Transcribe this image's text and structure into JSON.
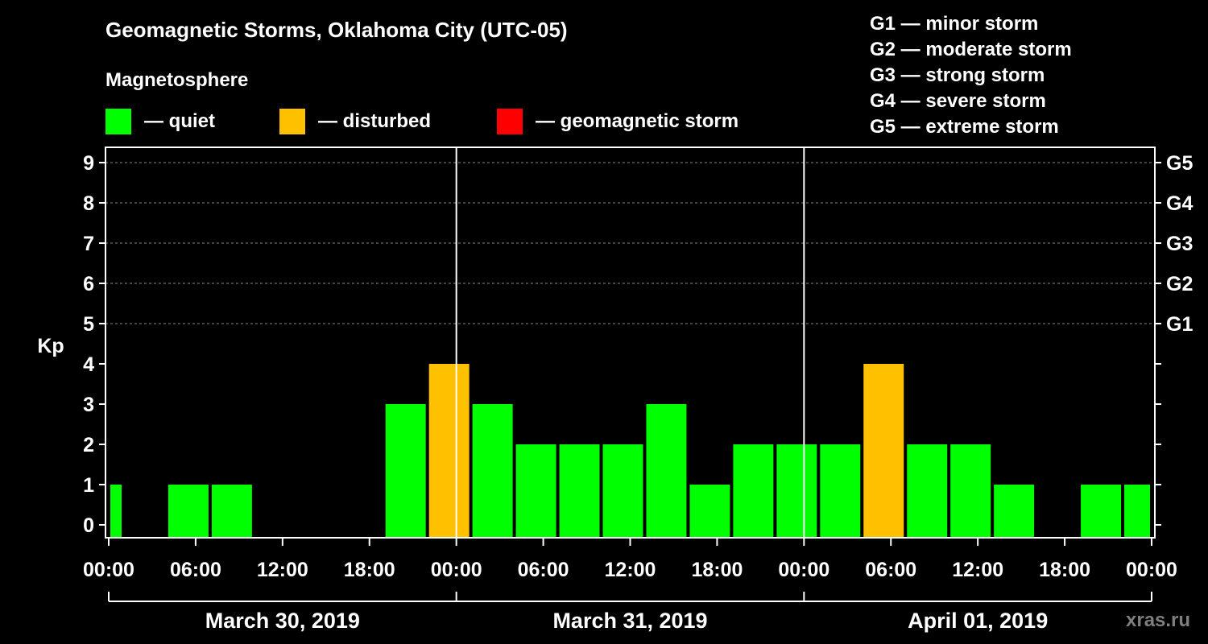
{
  "title": "Geomagnetic Storms, Oklahoma City (UTC-05)",
  "subtitle": "Magnetosphere",
  "legend": [
    {
      "label": "— quiet",
      "color": "#00ff00"
    },
    {
      "label": "— disturbed",
      "color": "#ffc000"
    },
    {
      "label": "— geomagnetic storm",
      "color": "#ff0000"
    }
  ],
  "storm_scale": [
    "G1 — minor storm",
    "G2 — moderate storm",
    "G3 — strong storm",
    "G4 — severe storm",
    "G5 — extreme storm"
  ],
  "credit": "xras.ru",
  "chart_data": {
    "type": "bar",
    "ylabel": "Kp",
    "ylim": [
      0,
      9
    ],
    "yticks": [
      0,
      1,
      2,
      3,
      4,
      5,
      6,
      7,
      8,
      9
    ],
    "right_ticks": [
      {
        "value": 5,
        "label": "G1"
      },
      {
        "value": 6,
        "label": "G2"
      },
      {
        "value": 7,
        "label": "G3"
      },
      {
        "value": 8,
        "label": "G4"
      },
      {
        "value": 9,
        "label": "G5"
      }
    ],
    "x_range_hours": [
      0,
      72
    ],
    "xtick_hours": [
      0,
      6,
      12,
      18,
      24,
      30,
      36,
      42,
      48,
      54,
      60,
      66,
      72
    ],
    "xtick_labels": [
      "00:00",
      "06:00",
      "12:00",
      "18:00",
      "00:00",
      "06:00",
      "12:00",
      "18:00",
      "00:00",
      "06:00",
      "12:00",
      "18:00",
      "00:00"
    ],
    "day_dividers_hours": [
      24,
      48
    ],
    "days": [
      {
        "label": "March 30, 2019",
        "start": 0,
        "end": 24
      },
      {
        "label": "March 31, 2019",
        "start": 24,
        "end": 48
      },
      {
        "label": "April 01, 2019",
        "start": 48,
        "end": 72
      }
    ],
    "colors": {
      "quiet": "#00ff00",
      "disturbed": "#ffc000",
      "storm": "#ff0000"
    },
    "bars": [
      {
        "start": 0,
        "end": 1,
        "kp": 1
      },
      {
        "start": 1,
        "end": 4,
        "kp": 0
      },
      {
        "start": 4,
        "end": 7,
        "kp": 1
      },
      {
        "start": 7,
        "end": 10,
        "kp": 1
      },
      {
        "start": 10,
        "end": 13,
        "kp": 0
      },
      {
        "start": 13,
        "end": 16,
        "kp": 0
      },
      {
        "start": 16,
        "end": 19,
        "kp": 0
      },
      {
        "start": 19,
        "end": 22,
        "kp": 3
      },
      {
        "start": 22,
        "end": 25,
        "kp": 4
      },
      {
        "start": 25,
        "end": 28,
        "kp": 3
      },
      {
        "start": 28,
        "end": 31,
        "kp": 2
      },
      {
        "start": 31,
        "end": 34,
        "kp": 2
      },
      {
        "start": 34,
        "end": 37,
        "kp": 2
      },
      {
        "start": 37,
        "end": 40,
        "kp": 3
      },
      {
        "start": 40,
        "end": 43,
        "kp": 1
      },
      {
        "start": 43,
        "end": 46,
        "kp": 2
      },
      {
        "start": 46,
        "end": 49,
        "kp": 2
      },
      {
        "start": 49,
        "end": 52,
        "kp": 2
      },
      {
        "start": 52,
        "end": 55,
        "kp": 4
      },
      {
        "start": 55,
        "end": 58,
        "kp": 2
      },
      {
        "start": 58,
        "end": 61,
        "kp": 2
      },
      {
        "start": 61,
        "end": 64,
        "kp": 1
      },
      {
        "start": 64,
        "end": 67,
        "kp": 0
      },
      {
        "start": 67,
        "end": 70,
        "kp": 1
      },
      {
        "start": 70,
        "end": 72,
        "kp": 1
      }
    ]
  }
}
